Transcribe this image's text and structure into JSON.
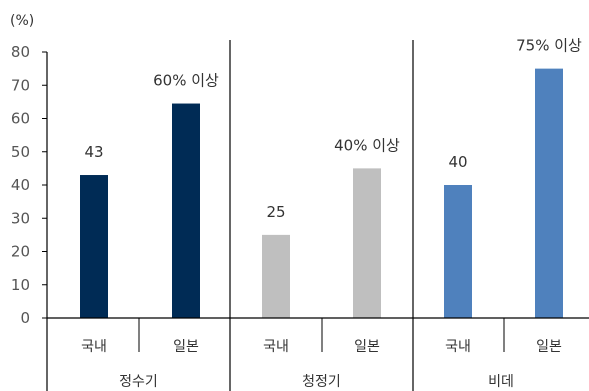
{
  "chart_data": {
    "type": "bar",
    "unit_label": "(%)",
    "y_ticks": [
      "0",
      "10",
      "20",
      "30",
      "40",
      "50",
      "60",
      "70",
      "80"
    ],
    "ylim": [
      0,
      80
    ],
    "groups": [
      {
        "name": "정수기",
        "bars": [
          {
            "category": "국내",
            "value": 43,
            "label": "43",
            "color": "#002b55"
          },
          {
            "category": "일본",
            "value": 64.5,
            "label": "60% 이상",
            "color": "#002b55"
          }
        ]
      },
      {
        "name": "청정기",
        "bars": [
          {
            "category": "국내",
            "value": 25,
            "label": "25",
            "color": "#bfbfbf"
          },
          {
            "category": "일본",
            "value": 45,
            "label": "40% 이상",
            "color": "#bfbfbf"
          }
        ]
      },
      {
        "name": "비데",
        "bars": [
          {
            "category": "국내",
            "value": 40,
            "label": "40",
            "color": "#4f81bd"
          },
          {
            "category": "일본",
            "value": 75,
            "label": "75% 이상",
            "color": "#4f81bd"
          }
        ]
      }
    ],
    "colors": {
      "axis": "#000000",
      "tick_text": "#555555",
      "label_text": "#333333"
    }
  }
}
